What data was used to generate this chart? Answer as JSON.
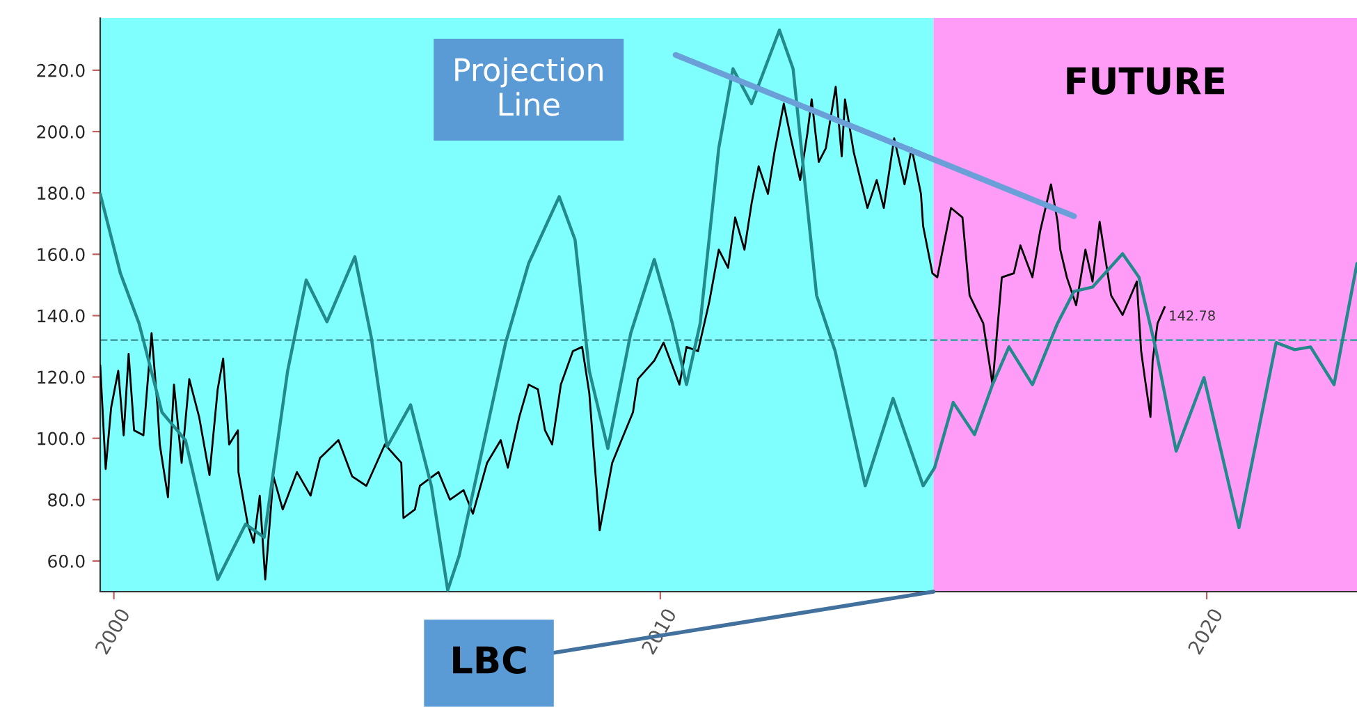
{
  "chart_data": {
    "type": "line",
    "xlim": [
      1999.75,
      2022.75
    ],
    "xticks": [
      2000,
      2010,
      2020
    ],
    "ylim": [
      50,
      237
    ],
    "yticks": [
      {
        "value": 60,
        "label": "60.0"
      },
      {
        "value": 80,
        "label": "80.0"
      },
      {
        "value": 100,
        "label": "100.0"
      },
      {
        "value": 120,
        "label": "120.0"
      },
      {
        "value": 140,
        "label": "140.0"
      },
      {
        "value": 160,
        "label": "160.0"
      },
      {
        "value": 180,
        "label": "180.0"
      },
      {
        "value": 200,
        "label": "200.0"
      },
      {
        "value": 220,
        "label": "220.0"
      }
    ],
    "grid": false,
    "legend": false,
    "marker": "none",
    "line_style": "solid",
    "bands": [
      {
        "axis": "x",
        "from": 1999.75,
        "to": 2015,
        "color": "#80ffff"
      },
      {
        "axis": "x",
        "from": 2015,
        "to": 2022.75,
        "color": "#ff9cf8",
        "label": "FUTURE"
      }
    ],
    "ref_lines": [
      {
        "axis": "y",
        "value": 132,
        "color": "#4aa3a3",
        "line_style": "dashed"
      }
    ],
    "series": [
      {
        "color": "#000000",
        "x": [
          1999.75,
          1999.85,
          1999.95,
          2000.08,
          2000.18,
          2000.27,
          2000.37,
          2000.54,
          2000.69,
          2000.8,
          2000.84,
          2000.99,
          2001.1,
          2001.24,
          2001.38,
          2001.56,
          2001.75,
          2001.9,
          2002.0,
          2002.11,
          2002.27,
          2002.28,
          2002.45,
          2002.56,
          2002.67,
          2002.77,
          2002.92,
          2003.09,
          2003.35,
          2003.6,
          2003.77,
          2004.11,
          2004.36,
          2004.62,
          2004.96,
          2005.26,
          2005.3,
          2005.51,
          2005.6,
          2005.94,
          2006.15,
          2006.4,
          2006.57,
          2006.83,
          2007.08,
          2007.21,
          2007.42,
          2007.59,
          2007.76,
          2007.89,
          2008.02,
          2008.18,
          2008.4,
          2008.57,
          2008.7,
          2008.87,
          2008.89,
          2009.12,
          2009.29,
          2009.5,
          2009.59,
          2009.89,
          2010.06,
          2010.35,
          2010.48,
          2010.69,
          2010.9,
          2011.07,
          2011.24,
          2011.37,
          2011.54,
          2011.67,
          2011.8,
          2011.97,
          2012.09,
          2012.26,
          2012.39,
          2012.56,
          2012.69,
          2012.77,
          2012.9,
          2013.03,
          2013.11,
          2013.21,
          2013.32,
          2013.38,
          2013.54,
          2013.79,
          2013.96,
          2014.09,
          2014.28,
          2014.47,
          2014.6,
          2014.77,
          2014.81,
          2014.98,
          2015.07,
          2015.32,
          2015.53,
          2015.66,
          2015.91,
          2016.08,
          2016.25,
          2016.47,
          2016.59,
          2016.81,
          2016.95,
          2017.15,
          2017.27,
          2017.32,
          2017.44,
          2017.61,
          2017.78,
          2017.91,
          2018.04,
          2018.25,
          2018.46,
          2018.72,
          2018.8,
          2018.87,
          2018.97,
          2019.01,
          2019.1,
          2019.23
        ],
        "values": [
          123.8,
          90,
          110,
          122,
          101,
          127.5,
          102.6,
          101,
          134.3,
          110,
          98,
          80.8,
          117.5,
          92,
          119.3,
          107,
          88,
          116,
          126,
          98,
          102.6,
          89,
          72,
          66,
          81.3,
          54,
          87.6,
          76.8,
          89,
          81.3,
          93.5,
          99.4,
          87.6,
          84.5,
          98,
          92,
          74,
          76.8,
          84.5,
          89,
          80,
          83.1,
          75.4,
          92,
          99.4,
          90.4,
          107,
          117.5,
          116,
          102.6,
          98,
          117.5,
          128.4,
          129.8,
          114.8,
          75.4,
          70,
          92,
          99.4,
          108.5,
          119.3,
          125.3,
          131.2,
          117.5,
          129.8,
          128.4,
          144.8,
          161.5,
          155.6,
          172,
          161.5,
          176.5,
          188.7,
          179.7,
          193.3,
          209.1,
          197.8,
          184.2,
          199.2,
          210.5,
          190.1,
          194.6,
          203.7,
          214.6,
          191.9,
          210.5,
          193.3,
          175.1,
          184.2,
          175.1,
          197.8,
          182.8,
          194.6,
          179.7,
          169.2,
          153.8,
          152.5,
          175.1,
          172,
          146.6,
          137.5,
          117.5,
          152.5,
          153.8,
          162.9,
          152.5,
          167.4,
          182.8,
          170.6,
          161.5,
          152.5,
          143.4,
          161.5,
          151.1,
          170.6,
          146.6,
          140.2,
          151.1,
          128.4,
          119.3,
          107,
          125.3,
          137.5,
          142.78
        ]
      },
      {
        "color": "#238a8c",
        "x": [
          1999.75,
          2000.12,
          2000.46,
          2000.88,
          2001.31,
          2001.9,
          2002.41,
          2002.75,
          2003.18,
          2003.52,
          2003.9,
          2004.41,
          2004.71,
          2005.0,
          2005.43,
          2005.81,
          2006.11,
          2006.32,
          2007.17,
          2007.59,
          2008.15,
          2008.44,
          2008.7,
          2009.04,
          2009.46,
          2009.89,
          2010.22,
          2010.48,
          2010.73,
          2011.07,
          2011.33,
          2011.67,
          2012.18,
          2012.43,
          2012.86,
          2013.2,
          2013.75,
          2014.26,
          2014.81,
          2015.02,
          2015.36,
          2015.75,
          2016.08,
          2016.38,
          2016.81,
          2017.27,
          2017.57,
          2017.91,
          2018.46,
          2018.76,
          2019.06,
          2019.44,
          2019.95,
          2020.59,
          2021.27,
          2021.61,
          2021.9,
          2022.33,
          2022.75
        ],
        "values": [
          179.7,
          153.8,
          137.5,
          108.5,
          99.4,
          54,
          72,
          67.7,
          122,
          151.6,
          138,
          159.2,
          133,
          97.2,
          110.9,
          84.5,
          50.5,
          61.8,
          131.2,
          157,
          178.8,
          164.7,
          122,
          96.7,
          134.3,
          158.3,
          137.5,
          117.5,
          137.5,
          194.6,
          220.5,
          209.1,
          233.1,
          220.5,
          146.6,
          128.4,
          84.5,
          113,
          84.5,
          90.4,
          111.7,
          101.2,
          117.5,
          129.8,
          117.5,
          137.5,
          147.9,
          149.3,
          160.2,
          152.5,
          129.8,
          95.8,
          119.8,
          70.9,
          131.2,
          128.9,
          129.8,
          117.5,
          157
        ]
      },
      {
        "color": "#6a9fd8",
        "x": [
          2010.28,
          2017.57
        ],
        "values": [
          225,
          172.4
        ]
      }
    ],
    "annotations": [
      {
        "text": "Projection\nLine",
        "x": 2010.28,
        "y": 225
      },
      {
        "text": "LBC",
        "x": 2015,
        "y": 50
      },
      {
        "text": "142.78",
        "x": 2019.23,
        "y": 142.78
      }
    ]
  }
}
